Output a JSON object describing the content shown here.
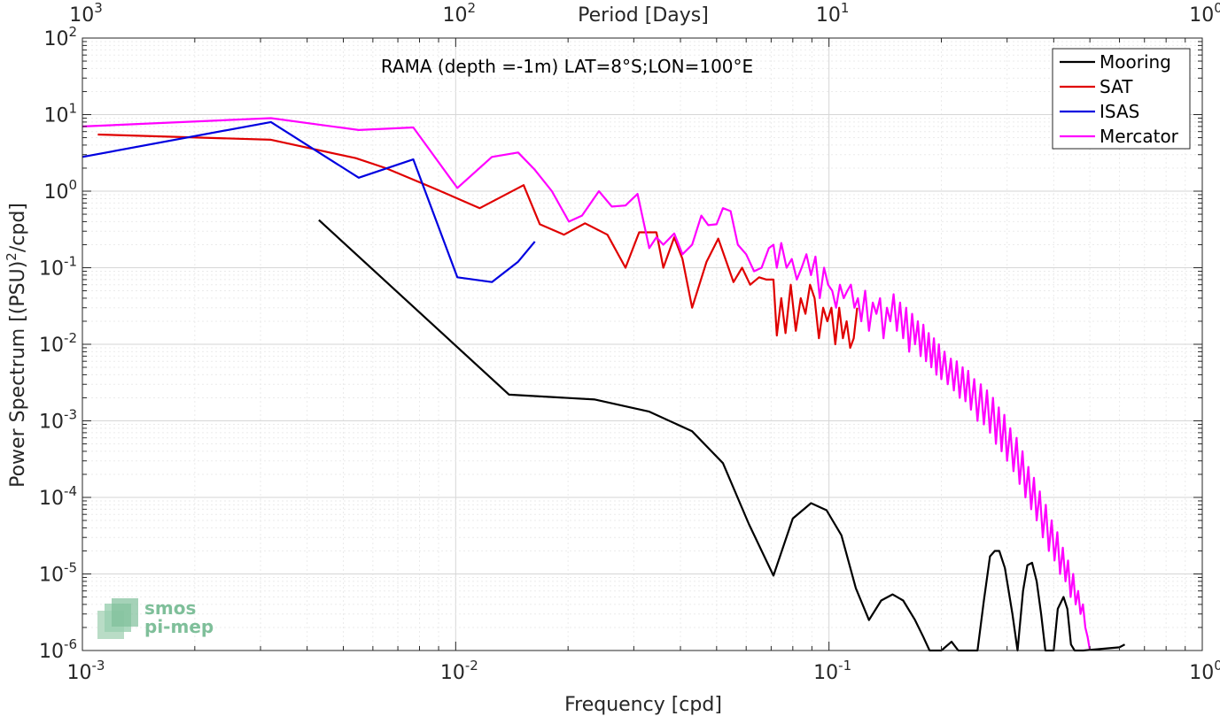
{
  "chart_data": {
    "type": "line",
    "title": "RAMA (depth =-1m) LAT=8°S;LON=100°E",
    "xlabel": "Frequency [cpd]",
    "x2label": "Period [Days]",
    "ylabel_main": "Power Spectrum [(PSU)",
    "ylabel_sup": "2",
    "ylabel_tail": "/cpd]",
    "xscale": "log",
    "yscale": "log",
    "xlim": [
      0.001,
      1
    ],
    "ylim": [
      1e-06,
      100
    ],
    "grid": true,
    "legend_position": "top-right",
    "x_ticks": [
      {
        "base": "10",
        "exp": "-3",
        "value": 0.001
      },
      {
        "base": "10",
        "exp": "-2",
        "value": 0.01
      },
      {
        "base": "10",
        "exp": "-1",
        "value": 0.1
      },
      {
        "base": "10",
        "exp": "0",
        "value": 1
      }
    ],
    "x2_ticks": [
      {
        "base": "10",
        "exp": "3",
        "value": 0.001
      },
      {
        "base": "10",
        "exp": "2",
        "value": 0.01
      },
      {
        "base": "10",
        "exp": "1",
        "value": 0.1
      },
      {
        "base": "10",
        "exp": "0",
        "value": 1
      }
    ],
    "y_ticks": [
      {
        "base": "10",
        "exp": "2",
        "value": 100
      },
      {
        "base": "10",
        "exp": "1",
        "value": 10
      },
      {
        "base": "10",
        "exp": "0",
        "value": 1
      },
      {
        "base": "10",
        "exp": "-1",
        "value": 0.1
      },
      {
        "base": "10",
        "exp": "-2",
        "value": 0.01
      },
      {
        "base": "10",
        "exp": "-3",
        "value": 0.001
      },
      {
        "base": "10",
        "exp": "-4",
        "value": 0.0001
      },
      {
        "base": "10",
        "exp": "-5",
        "value": 1e-05
      },
      {
        "base": "10",
        "exp": "-6",
        "value": 1e-06
      }
    ],
    "series": [
      {
        "name": "Mooring",
        "color": "#000000",
        "x": [
          0.0043,
          0.0139,
          0.0236,
          0.033,
          0.043,
          0.052,
          0.061,
          0.071,
          0.08,
          0.0895,
          0.0985,
          0.108,
          0.118,
          0.128,
          0.138,
          0.148,
          0.158,
          0.17,
          0.179,
          0.186,
          0.2,
          0.213,
          0.222,
          0.23,
          0.25,
          0.26,
          0.27,
          0.278,
          0.286,
          0.296,
          0.31,
          0.32,
          0.331,
          0.34,
          0.35,
          0.36,
          0.37,
          0.38,
          0.391,
          0.4,
          0.41,
          0.425,
          0.435,
          0.445,
          0.455,
          0.465,
          0.48,
          0.6,
          0.62
        ],
        "y": [
          0.42,
          0.0022,
          0.0019,
          0.00132,
          0.00073,
          0.00028,
          4.5e-05,
          9.5e-06,
          5.3e-05,
          8.4e-05,
          6.8e-05,
          3.2e-05,
          6.5e-06,
          2.5e-06,
          4.5e-06,
          5.4e-06,
          4.5e-06,
          2.5e-06,
          1.5e-06,
          1e-06,
          1e-06,
          1.3e-06,
          1e-06,
          1e-06,
          1e-06,
          4.5e-06,
          1.7e-05,
          2e-05,
          2e-05,
          1.2e-05,
          3e-06,
          1e-06,
          6e-06,
          1.3e-05,
          1.4e-05,
          8e-06,
          3e-06,
          1e-06,
          1e-06,
          1e-06,
          3.5e-06,
          5e-06,
          3.5e-06,
          1.2e-06,
          1e-06,
          1e-06,
          1e-06,
          1.1e-06,
          1.2e-06
        ]
      },
      {
        "name": "SAT",
        "color": "#e00000",
        "x": [
          0.0011,
          0.0032,
          0.0054,
          0.0065,
          0.0087,
          0.0116,
          0.0152,
          0.0168,
          0.0195,
          0.0222,
          0.0255,
          0.0285,
          0.031,
          0.0345,
          0.036,
          0.0385,
          0.0405,
          0.043,
          0.047,
          0.0505,
          0.0555,
          0.0585,
          0.0615,
          0.065,
          0.068,
          0.071,
          0.0725,
          0.0745,
          0.0765,
          0.079,
          0.0815,
          0.084,
          0.0865,
          0.089,
          0.0915,
          0.094,
          0.0965,
          0.099,
          0.1015,
          0.104,
          0.1065,
          0.109,
          0.1115,
          0.114,
          0.1165,
          0.119
        ],
        "y": [
          5.5,
          4.7,
          2.7,
          2.0,
          1.1,
          0.6,
          1.2,
          0.37,
          0.27,
          0.38,
          0.27,
          0.1,
          0.29,
          0.29,
          0.1,
          0.25,
          0.13,
          0.03,
          0.12,
          0.24,
          0.065,
          0.1,
          0.06,
          0.075,
          0.07,
          0.07,
          0.013,
          0.04,
          0.014,
          0.06,
          0.015,
          0.04,
          0.025,
          0.06,
          0.04,
          0.012,
          0.03,
          0.02,
          0.03,
          0.01,
          0.03,
          0.012,
          0.02,
          0.009,
          0.012,
          0.03
        ]
      },
      {
        "name": "ISAS",
        "color": "#0000e0",
        "x": [
          0.001,
          0.0032,
          0.0055,
          0.0077,
          0.0101,
          0.0125,
          0.0147,
          0.0163
        ],
        "y": [
          2.8,
          8.0,
          1.5,
          2.6,
          0.075,
          0.065,
          0.12,
          0.22
        ]
      },
      {
        "name": "Mercator",
        "color": "#ff00ff",
        "x": [
          0.001,
          0.0032,
          0.0055,
          0.0077,
          0.0101,
          0.0125,
          0.0147,
          0.0163,
          0.0181,
          0.0201,
          0.0218,
          0.0242,
          0.0262,
          0.0285,
          0.0307,
          0.033,
          0.0345,
          0.036,
          0.0385,
          0.0405,
          0.043,
          0.0455,
          0.0475,
          0.05,
          0.052,
          0.0545,
          0.057,
          0.06,
          0.063,
          0.066,
          0.069,
          0.071,
          0.0725,
          0.0745,
          0.077,
          0.0795,
          0.082,
          0.0845,
          0.087,
          0.0895,
          0.092,
          0.0945,
          0.097,
          0.0995,
          0.102,
          0.1045,
          0.107,
          0.1095,
          0.112,
          0.1145,
          0.117,
          0.1195,
          0.122,
          0.125,
          0.128,
          0.131,
          0.134,
          0.137,
          0.14,
          0.143,
          0.146,
          0.149,
          0.152,
          0.155,
          0.158,
          0.161,
          0.164,
          0.167,
          0.17,
          0.173,
          0.176,
          0.179,
          0.182,
          0.185,
          0.188,
          0.191,
          0.194,
          0.197,
          0.2,
          0.204,
          0.208,
          0.212,
          0.216,
          0.22,
          0.224,
          0.228,
          0.232,
          0.236,
          0.24,
          0.245,
          0.25,
          0.255,
          0.26,
          0.265,
          0.27,
          0.275,
          0.28,
          0.285,
          0.29,
          0.295,
          0.3,
          0.306,
          0.312,
          0.318,
          0.324,
          0.33,
          0.336,
          0.342,
          0.348,
          0.354,
          0.36,
          0.367,
          0.374,
          0.381,
          0.388,
          0.395,
          0.402,
          0.409,
          0.416,
          0.423,
          0.43,
          0.437,
          0.444,
          0.451,
          0.458,
          0.465,
          0.472,
          0.479,
          0.486,
          0.493,
          0.5
        ],
        "y": [
          7.0,
          9.0,
          6.3,
          6.8,
          1.1,
          2.8,
          3.2,
          1.9,
          1.0,
          0.4,
          0.48,
          1.0,
          0.63,
          0.65,
          0.92,
          0.18,
          0.25,
          0.2,
          0.28,
          0.15,
          0.2,
          0.48,
          0.36,
          0.37,
          0.6,
          0.55,
          0.2,
          0.15,
          0.09,
          0.1,
          0.18,
          0.2,
          0.1,
          0.21,
          0.1,
          0.13,
          0.07,
          0.1,
          0.15,
          0.08,
          0.14,
          0.04,
          0.1,
          0.06,
          0.05,
          0.03,
          0.06,
          0.04,
          0.05,
          0.06,
          0.03,
          0.04,
          0.02,
          0.05,
          0.015,
          0.035,
          0.025,
          0.04,
          0.012,
          0.03,
          0.02,
          0.045,
          0.015,
          0.035,
          0.012,
          0.03,
          0.008,
          0.025,
          0.01,
          0.02,
          0.007,
          0.018,
          0.006,
          0.014,
          0.005,
          0.012,
          0.004,
          0.01,
          0.0035,
          0.008,
          0.003,
          0.0065,
          0.0025,
          0.006,
          0.002,
          0.005,
          0.0018,
          0.0045,
          0.0014,
          0.0035,
          0.001,
          0.003,
          0.0009,
          0.0025,
          0.0007,
          0.002,
          0.0005,
          0.0015,
          0.0004,
          0.0012,
          0.0003,
          0.0008,
          0.00022,
          0.0006,
          0.00015,
          0.0004,
          0.0001,
          0.00025,
          7e-05,
          0.00018,
          5e-05,
          0.00012,
          3e-05,
          8e-05,
          2e-05,
          5e-05,
          1.5e-05,
          3.5e-05,
          1e-05,
          2.2e-05,
          8e-06,
          1.5e-05,
          5e-06,
          1e-05,
          4e-06,
          6e-06,
          3e-06,
          4e-06,
          2e-06,
          1.5e-06,
          1e-06
        ]
      }
    ]
  },
  "logo": {
    "line1": "smos",
    "line2": "pi-mep"
  }
}
